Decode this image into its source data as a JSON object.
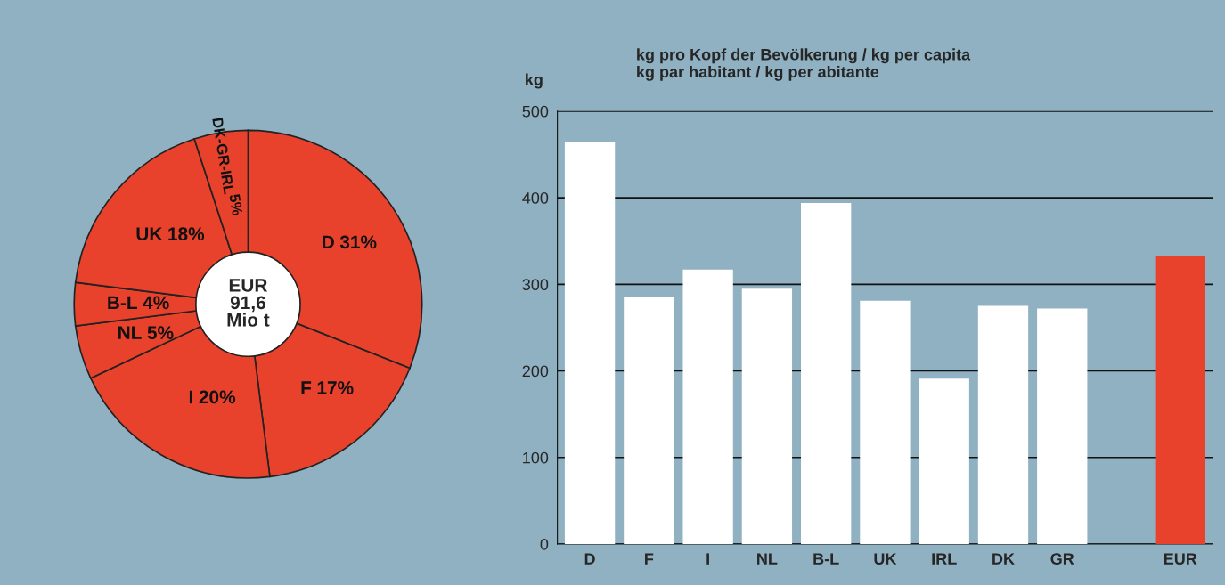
{
  "chart_data": [
    {
      "type": "donut",
      "categories": [
        "D",
        "F",
        "I",
        "NL",
        "B-L",
        "UK",
        "DK-GR-IRL"
      ],
      "values": [
        31,
        17,
        20,
        5,
        4,
        18,
        5
      ],
      "value_labels": [
        "31%",
        "17%",
        "20%",
        "5%",
        "4%",
        "18%",
        "5%"
      ],
      "colors": [
        "#e8412c",
        "#e8412c",
        "#e8412c",
        "#e8412c",
        "#e8412c",
        "#e8412c",
        "#e8412c"
      ],
      "annotations": [
        "EUR\n91,6\nMio t"
      ]
    },
    {
      "type": "bar",
      "title": "kg pro Kopf der Bevölkerung / kg per capita\nkg par habitant / kg per abitante",
      "ylabel": "kg",
      "categories": [
        "D",
        "F",
        "I",
        "NL",
        "B-L",
        "UK",
        "IRL",
        "DK",
        "GR",
        null,
        "EUR"
      ],
      "values": [
        464,
        286,
        317,
        295,
        394,
        281,
        191,
        275,
        272,
        null,
        333
      ],
      "colors": [
        "#ffffff",
        "#ffffff",
        "#ffffff",
        "#ffffff",
        "#ffffff",
        "#ffffff",
        "#ffffff",
        "#ffffff",
        "#ffffff",
        "#ffffff",
        "#e8412c"
      ],
      "ylim": [
        0,
        500
      ],
      "yticks": [
        0,
        100,
        200,
        300,
        400,
        500
      ],
      "grid": "y"
    }
  ]
}
